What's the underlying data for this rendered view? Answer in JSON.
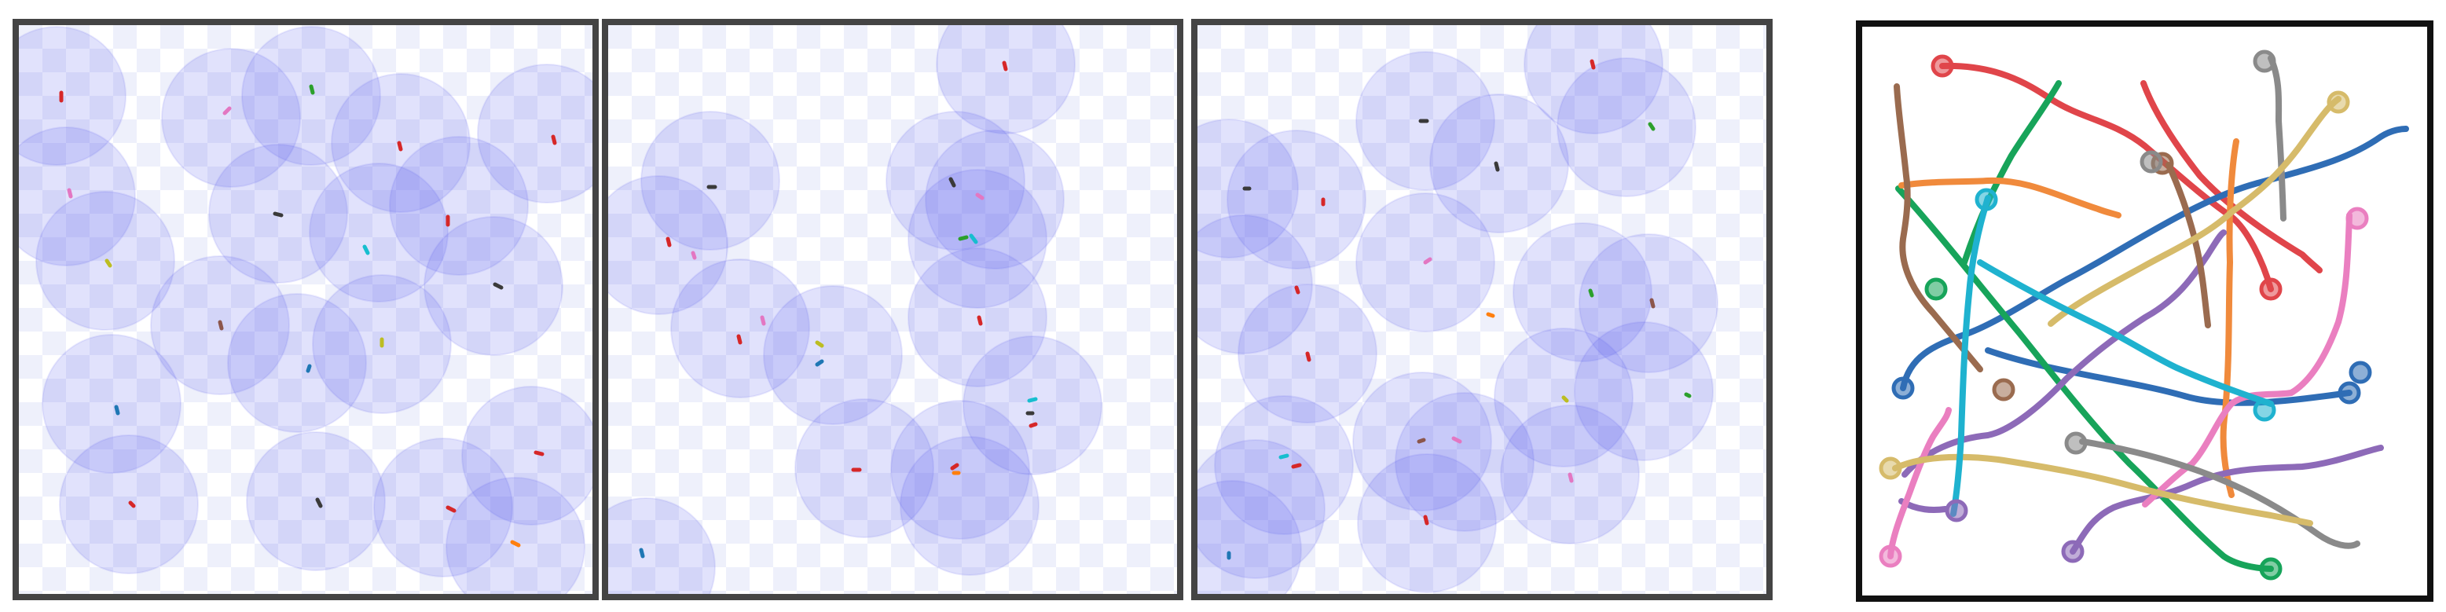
{
  "colors": {
    "sim_frame": "#444444",
    "traj_frame": "#111111",
    "checker_light": "#ffffff",
    "checker_dark": "#eef0fb",
    "fov_fill": "#5a5cf0",
    "agent_body": "#3a3a3a"
  },
  "agent_palette": [
    "#d62728",
    "#1f77b4",
    "#2ca02c",
    "#ff7f0e",
    "#9467bd",
    "#8c564b",
    "#e377c2",
    "#7f7f7f",
    "#bcbd22",
    "#17becf"
  ],
  "trajectory_palette": [
    "#e0454a",
    "#2f6db5",
    "#17a45a",
    "#f08a3c",
    "#8d6ab8",
    "#9a6b4f",
    "#ea7fc0",
    "#8a8a8a",
    "#d6bb6a",
    "#1fb2cf"
  ],
  "icons": {
    "agent": "agent-icon",
    "field_of_view": "field-of-view-disc",
    "trajectory_start": "trajectory-start-marker",
    "trajectory_end": "trajectory-end-marker"
  }
}
